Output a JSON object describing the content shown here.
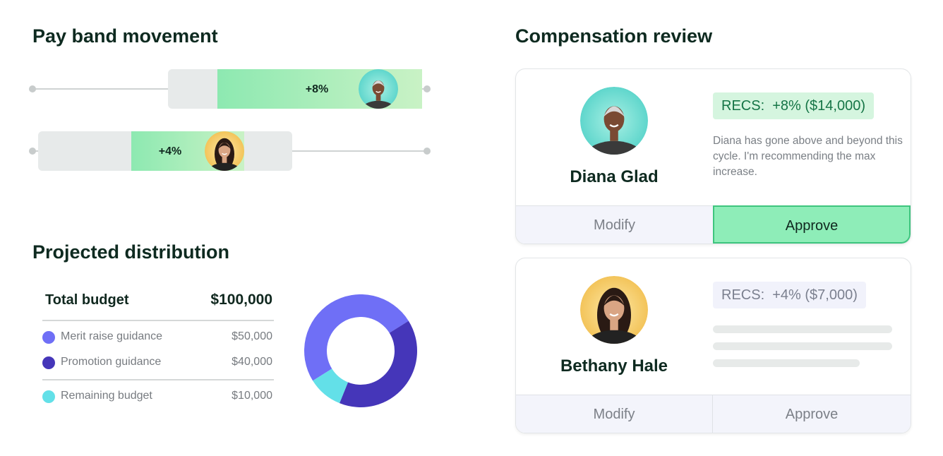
{
  "pay_band": {
    "title": "Pay band movement",
    "rows": [
      {
        "label": "+8%"
      },
      {
        "label": "+4%"
      }
    ]
  },
  "distribution": {
    "title": "Projected distribution",
    "total": {
      "label": "Total budget",
      "value": "$100,000"
    },
    "items": [
      {
        "name": "Merit raise guidance",
        "value": 50000,
        "value_label": "$50,000",
        "color": "#6f6ff6"
      },
      {
        "name": "Promotion guidance",
        "value": 40000,
        "value_label": "$40,000",
        "color": "#4536b9"
      },
      {
        "name": "Remaining budget",
        "value": 10000,
        "value_label": "$10,000",
        "color": "#63e0e8"
      }
    ]
  },
  "review": {
    "title": "Compensation review",
    "cards": [
      {
        "name": "Diana Glad",
        "recs": "RECS:  +8% ($14,000)",
        "note": "Diana has gone above and beyond this cycle. I'm recommending the max increase.",
        "modify": "Modify",
        "approve": "Approve"
      },
      {
        "name": "Bethany Hale",
        "recs": "RECS:  +4% ($7,000)",
        "modify": "Modify",
        "approve": "Approve"
      }
    ]
  }
}
